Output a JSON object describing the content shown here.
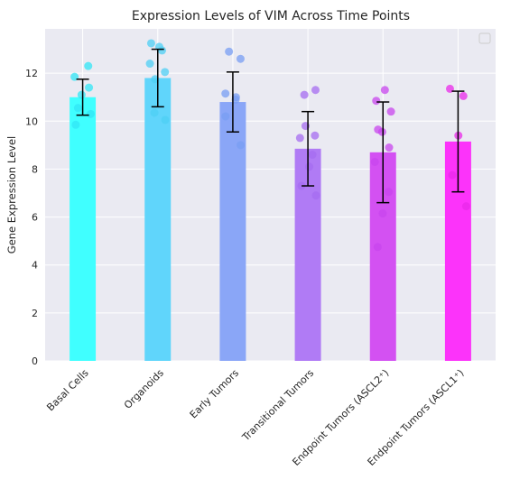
{
  "chart_data": {
    "type": "bar",
    "title": "Expression Levels of VIM Across Time Points",
    "xlabel": "",
    "ylabel": "Gene Expression Level",
    "ylim": [
      0,
      13.85
    ],
    "yticks": [
      0,
      2,
      4,
      6,
      8,
      10,
      12
    ],
    "grid": true,
    "legend": "top-right, empty",
    "categories": [
      "Basal Cells",
      "Organoids",
      "Early Tumors",
      "Transitional Tumors",
      "Endpoint Tumors (ASCL2⁺)",
      "Endpoint Tumors (ASCL1⁺)"
    ],
    "values": [
      11.0,
      11.8,
      10.8,
      8.85,
      8.7,
      9.15
    ],
    "errors": [
      0.75,
      1.2,
      1.25,
      1.55,
      2.1,
      2.1
    ],
    "bar_colors": [
      "#40ffff",
      "#60d5fb",
      "#8aa6f7",
      "#b07bf5",
      "#d351f2",
      "#fc33fa"
    ],
    "points": [
      [
        12.3,
        11.85,
        11.4,
        11.1,
        10.55,
        10.3,
        9.85
      ],
      [
        13.25,
        13.1,
        12.95,
        12.4,
        12.05,
        11.75,
        10.35,
        10.05
      ],
      [
        12.9,
        12.6,
        11.15,
        11.0,
        10.9,
        10.2,
        9.0
      ],
      [
        11.3,
        11.1,
        9.8,
        9.4,
        9.3,
        8.6,
        8.1,
        7.3,
        6.9
      ],
      [
        11.3,
        10.85,
        10.4,
        9.65,
        9.55,
        8.9,
        8.3,
        7.05,
        6.15,
        4.75
      ],
      [
        11.35,
        11.05,
        9.4,
        7.75,
        6.45
      ]
    ],
    "point_colors": [
      "#31e6f6",
      "#4ecff4",
      "#789df3",
      "#a56cf0",
      "#c845ee",
      "#e92ae9"
    ]
  }
}
